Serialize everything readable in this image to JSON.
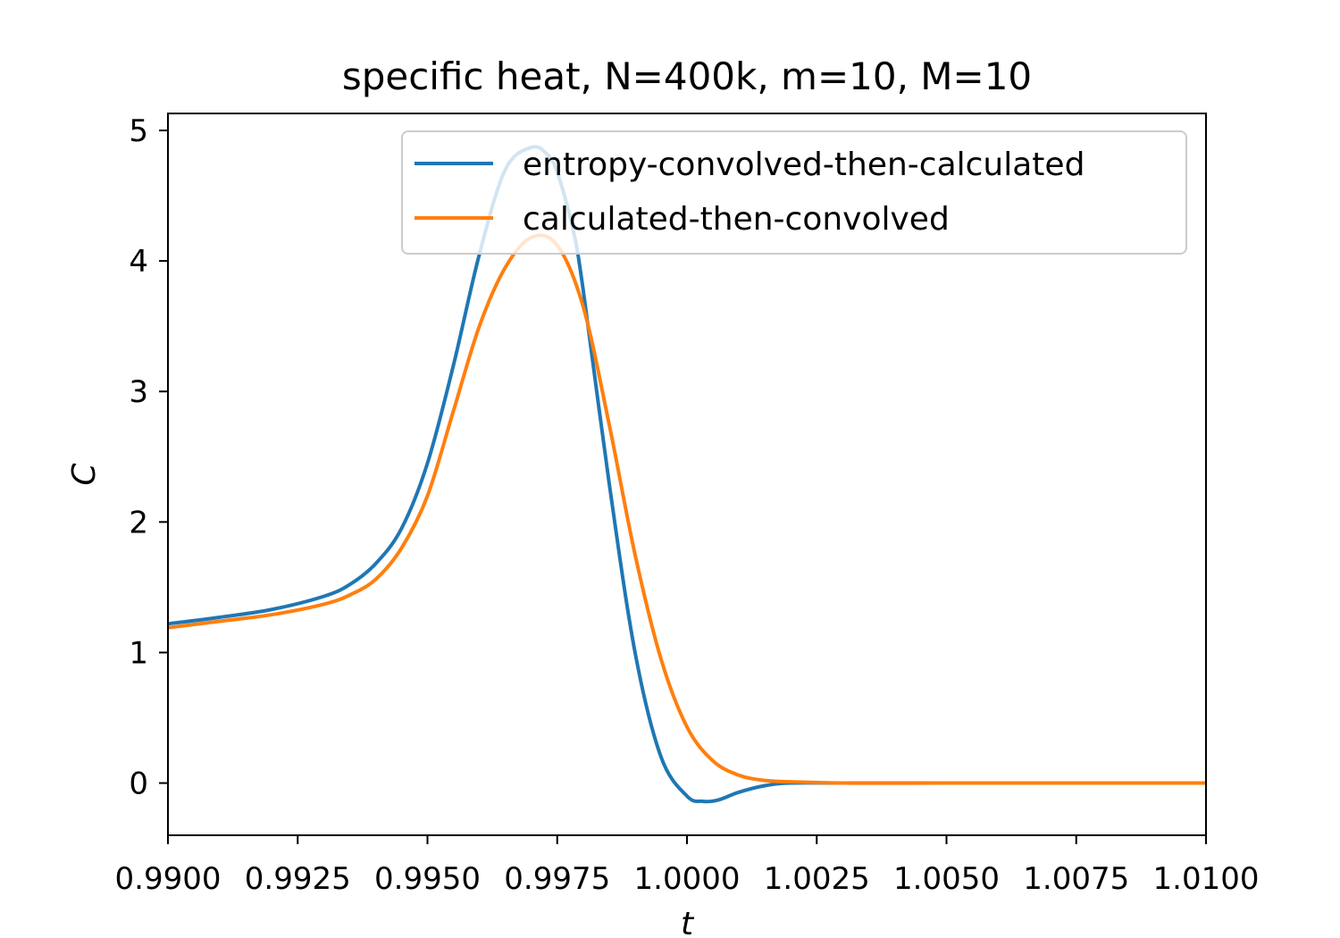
{
  "chart_data": {
    "type": "line",
    "title": "specific heat, N=400k, m=10, M=10",
    "xlabel": "t",
    "ylabel": "C",
    "xlim": [
      0.99,
      1.01
    ],
    "ylim": [
      -0.4,
      5.13
    ],
    "xticks": [
      0.99,
      0.9925,
      0.995,
      0.9975,
      1.0,
      1.0025,
      1.005,
      1.0075,
      1.01
    ],
    "xtick_labels": [
      "0.9900",
      "0.9925",
      "0.9950",
      "0.9975",
      "1.0000",
      "1.0025",
      "1.0050",
      "1.0075",
      "1.0100"
    ],
    "yticks": [
      0,
      1,
      2,
      3,
      4,
      5
    ],
    "ytick_labels": [
      "0",
      "1",
      "2",
      "3",
      "4",
      "5"
    ],
    "grid": false,
    "legend_position": "top-right",
    "series": [
      {
        "name": "entropy-convolved-then-calculated",
        "color": "#1f77b4",
        "x": [
          0.99,
          0.991,
          0.992,
          0.993,
          0.9935,
          0.994,
          0.9945,
          0.995,
          0.9955,
          0.996,
          0.9965,
          0.997,
          0.9973,
          0.9975,
          0.9978,
          0.998,
          0.9985,
          0.999,
          0.9995,
          1.0,
          1.0003,
          1.0006,
          1.001,
          1.0015,
          1.002,
          1.003,
          1.005,
          1.01
        ],
        "y": [
          1.22,
          1.27,
          1.33,
          1.43,
          1.52,
          1.68,
          1.95,
          2.45,
          3.2,
          4.05,
          4.7,
          4.87,
          4.82,
          4.68,
          4.25,
          3.78,
          2.3,
          1.0,
          0.2,
          -0.1,
          -0.14,
          -0.13,
          -0.07,
          -0.02,
          0.0,
          0.0,
          0.0,
          0.0
        ]
      },
      {
        "name": "calculated-then-convolved",
        "color": "#ff7f0e",
        "x": [
          0.99,
          0.991,
          0.992,
          0.993,
          0.9935,
          0.994,
          0.9945,
          0.995,
          0.9955,
          0.996,
          0.9965,
          0.997,
          0.9975,
          0.998,
          0.9985,
          0.999,
          0.9995,
          1.0,
          1.0005,
          1.001,
          1.0015,
          1.002,
          1.003,
          1.005,
          1.01
        ],
        "y": [
          1.19,
          1.24,
          1.29,
          1.37,
          1.44,
          1.56,
          1.8,
          2.2,
          2.85,
          3.5,
          3.95,
          4.18,
          4.12,
          3.65,
          2.75,
          1.75,
          0.95,
          0.43,
          0.17,
          0.06,
          0.02,
          0.01,
          0.0,
          0.0,
          0.0
        ]
      }
    ]
  }
}
